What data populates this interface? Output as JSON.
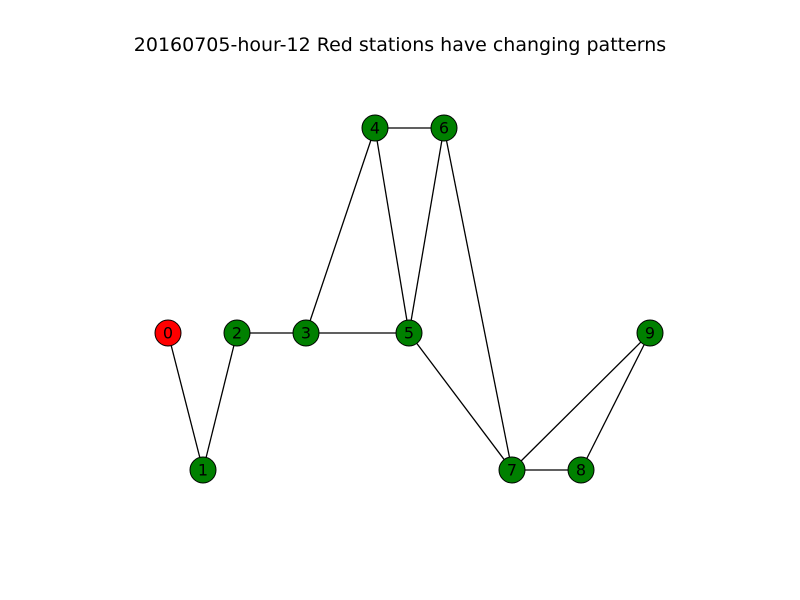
{
  "title": "20160705-hour-12 Red stations have changing patterns",
  "colors": {
    "changing": "#ff0000",
    "normal": "#008000",
    "edge": "#000000",
    "node_outline": "#000000"
  },
  "graph": {
    "nodes": [
      {
        "id": "0",
        "label": "0",
        "status": "changing"
      },
      {
        "id": "1",
        "label": "1",
        "status": "normal"
      },
      {
        "id": "2",
        "label": "2",
        "status": "normal"
      },
      {
        "id": "3",
        "label": "3",
        "status": "normal"
      },
      {
        "id": "4",
        "label": "4",
        "status": "normal"
      },
      {
        "id": "5",
        "label": "5",
        "status": "normal"
      },
      {
        "id": "6",
        "label": "6",
        "status": "normal"
      },
      {
        "id": "7",
        "label": "7",
        "status": "normal"
      },
      {
        "id": "8",
        "label": "8",
        "status": "normal"
      },
      {
        "id": "9",
        "label": "9",
        "status": "normal"
      }
    ],
    "edges": [
      [
        "0",
        "1"
      ],
      [
        "1",
        "2"
      ],
      [
        "2",
        "3"
      ],
      [
        "3",
        "4"
      ],
      [
        "3",
        "5"
      ],
      [
        "4",
        "6"
      ],
      [
        "4",
        "5"
      ],
      [
        "6",
        "5"
      ],
      [
        "6",
        "7"
      ],
      [
        "5",
        "7"
      ],
      [
        "7",
        "8"
      ],
      [
        "7",
        "9"
      ],
      [
        "8",
        "9"
      ]
    ]
  }
}
